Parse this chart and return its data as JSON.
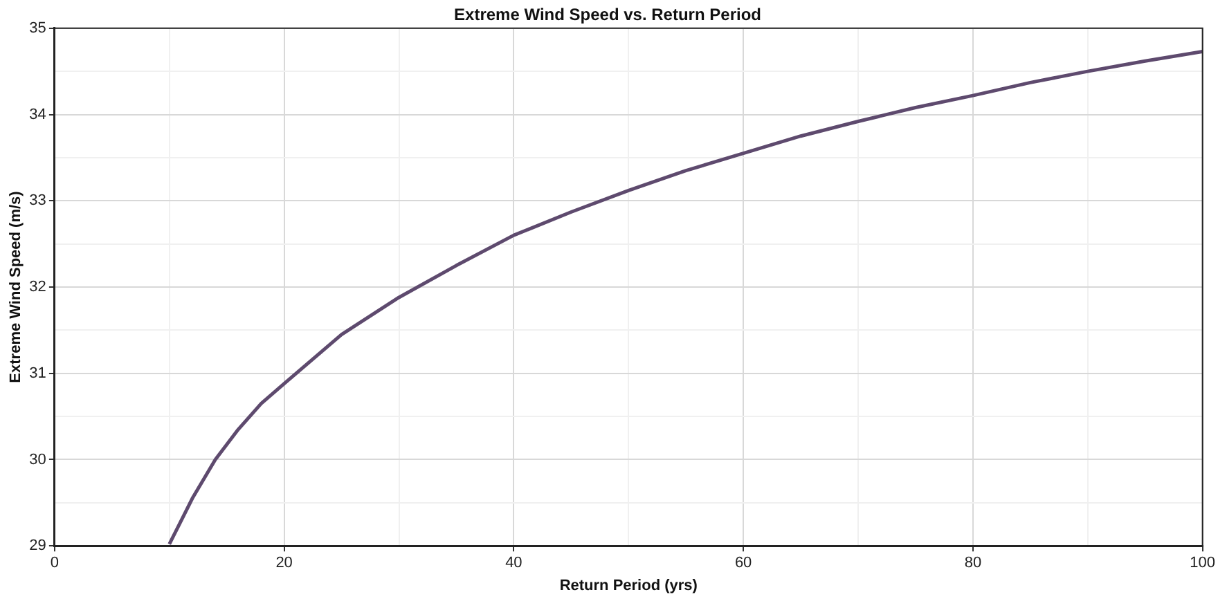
{
  "chart_data": {
    "type": "line",
    "title": "Extreme Wind Speed vs. Return Period",
    "xlabel": "Return Period (yrs)",
    "ylabel": "Extreme Wind Speed (m/s)",
    "x": [
      10,
      12,
      14,
      16,
      18,
      20,
      25,
      30,
      35,
      40,
      45,
      50,
      55,
      60,
      65,
      70,
      75,
      80,
      85,
      90,
      95,
      100
    ],
    "series": [
      {
        "color": "#5e4a6e",
        "values": [
          29.02,
          29.55,
          30.0,
          30.35,
          30.65,
          30.88,
          31.45,
          31.88,
          32.25,
          32.6,
          32.87,
          33.12,
          33.35,
          33.55,
          33.75,
          33.92,
          34.08,
          34.22,
          34.37,
          34.5,
          34.62,
          34.73
        ]
      }
    ],
    "xlim": [
      0,
      100
    ],
    "ylim": [
      29,
      35
    ],
    "xticks": [
      0,
      {
        "value": 10,
        "label": null
      },
      20,
      {
        "value": 30,
        "label": null
      },
      40,
      {
        "value": 50,
        "label": null
      },
      60,
      {
        "value": 70,
        "label": null
      },
      80,
      {
        "value": 90,
        "label": null
      },
      100
    ],
    "yticks": [
      29,
      {
        "value": 29.5,
        "label": null
      },
      30,
      {
        "value": 30.5,
        "label": null
      },
      31,
      {
        "value": 31.5,
        "label": null
      },
      32,
      {
        "value": 32.5,
        "label": null
      },
      33,
      {
        "value": 33.5,
        "label": null
      },
      34,
      {
        "value": 34.5,
        "label": null
      },
      35
    ],
    "grid": true,
    "legend": false,
    "marker": "none",
    "line_style": "solid"
  }
}
